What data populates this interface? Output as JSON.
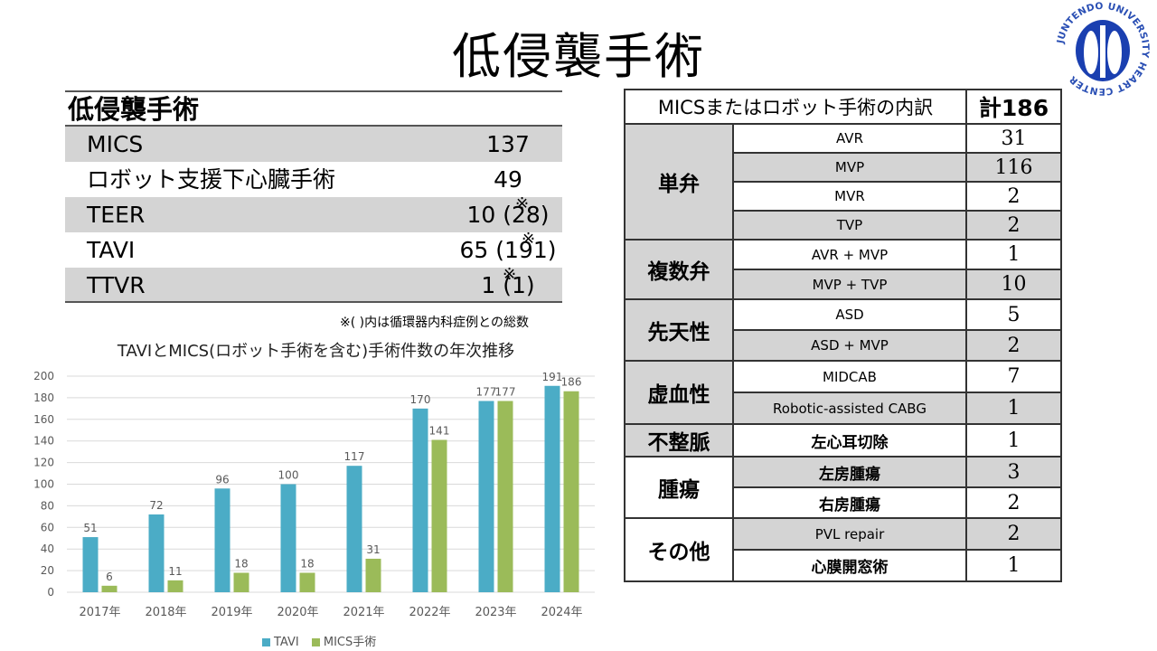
{
  "page_title": "低侵襲手術",
  "logo_text": "JUNTENDO UNIVERSITY HEART CENTER",
  "summary": {
    "heading": "低侵襲手術",
    "rows": [
      {
        "label": "MICS",
        "value": "137",
        "mark": ""
      },
      {
        "label": "ロボット支援下心臓手術",
        "value": "49",
        "mark": ""
      },
      {
        "label": "TEER",
        "value": "10 (28)",
        "mark": "※"
      },
      {
        "label": "TAVI",
        "value": "65 (191)",
        "mark": "※"
      },
      {
        "label": "TTVR",
        "value": "1 (1)",
        "mark": "※"
      }
    ],
    "note": "※( )内は循環器内科症例との総数"
  },
  "colors": {
    "tavi": "#4bacc6",
    "mics": "#9bbb59",
    "shade": "#d4d4d4"
  },
  "chart_data": {
    "type": "bar",
    "title": "TAVIとMICS(ロボット手術を含む)手術件数の年次推移",
    "categories": [
      "2017年",
      "2018年",
      "2019年",
      "2020年",
      "2021年",
      "2022年",
      "2023年",
      "2024年"
    ],
    "series": [
      {
        "name": "TAVI",
        "values": [
          51,
          72,
          96,
          100,
          117,
          170,
          177,
          191
        ]
      },
      {
        "name": "MICS手術",
        "values": [
          6,
          11,
          18,
          18,
          31,
          141,
          177,
          186
        ]
      }
    ],
    "ylim": [
      0,
      200
    ],
    "yticks": [
      0,
      20,
      40,
      60,
      80,
      100,
      120,
      140,
      160,
      180,
      200
    ],
    "grid": true,
    "legend": "bottom"
  },
  "breakdown": {
    "header_label": "MICSまたはロボット手術の内訳",
    "header_total": "計186",
    "groups": [
      {
        "category": "単弁",
        "items": [
          {
            "name": "AVR",
            "count": "31"
          },
          {
            "name": "MVP",
            "count": "116"
          },
          {
            "name": "MVR",
            "count": "2"
          },
          {
            "name": "TVP",
            "count": "2"
          }
        ]
      },
      {
        "category": "複数弁",
        "items": [
          {
            "name": "AVR + MVP",
            "count": "1"
          },
          {
            "name": "MVP + TVP",
            "count": "10"
          }
        ]
      },
      {
        "category": "先天性",
        "items": [
          {
            "name": "ASD",
            "count": "5"
          },
          {
            "name": "ASD + MVP",
            "count": "2"
          }
        ]
      },
      {
        "category": "虚血性",
        "items": [
          {
            "name": "MIDCAB",
            "count": "7"
          },
          {
            "name": "Robotic-assisted CABG",
            "count": "1"
          }
        ]
      },
      {
        "category": "不整脈",
        "items": [
          {
            "name": "左心耳切除",
            "count": "1"
          }
        ]
      },
      {
        "category": "腫瘍",
        "items": [
          {
            "name": "左房腫瘍",
            "count": "3"
          },
          {
            "name": "右房腫瘍",
            "count": "2"
          }
        ]
      },
      {
        "category": "その他",
        "items": [
          {
            "name": "PVL repair",
            "count": "2"
          },
          {
            "name": "心膜開窓術",
            "count": "1"
          }
        ]
      }
    ]
  }
}
